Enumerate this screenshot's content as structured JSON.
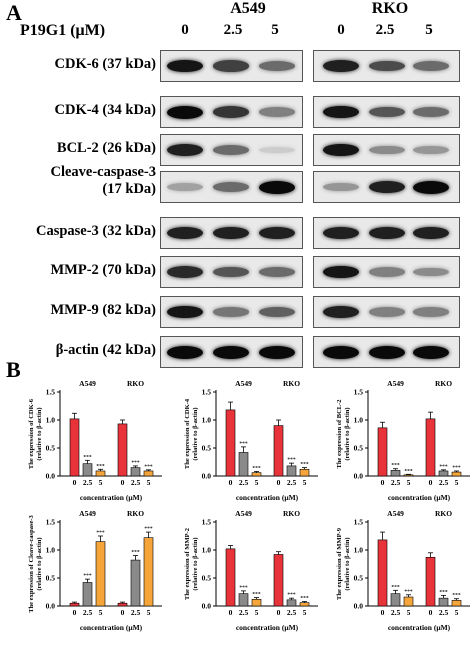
{
  "panel_a": {
    "label": "A",
    "treatment_label": "P19G1 (μM)",
    "cell_lines": [
      "A549",
      "RKO"
    ],
    "concentrations": [
      "0",
      "2.5",
      "5"
    ],
    "rows": [
      {
        "label": "CDK-6 (37 kDa)",
        "a549": [
          0.95,
          0.75,
          0.55
        ],
        "rko": [
          0.9,
          0.7,
          0.55
        ]
      },
      {
        "label": "CDK-4 (34 kDa)",
        "a549": [
          1.0,
          0.8,
          0.45
        ],
        "rko": [
          0.95,
          0.65,
          0.55
        ]
      },
      {
        "label": "BCL-2 (26 kDa)",
        "a549": [
          0.9,
          0.55,
          0.1
        ],
        "rko": [
          0.95,
          0.4,
          0.35
        ]
      },
      {
        "label": "Cleave-caspase-3\n(17 kDa)",
        "a549": [
          0.3,
          0.55,
          1.0
        ],
        "rko": [
          0.35,
          0.9,
          1.0
        ]
      },
      {
        "label": "Caspase-3 (32 kDa)",
        "a549": [
          0.9,
          0.9,
          0.9
        ],
        "rko": [
          0.9,
          0.9,
          0.9
        ]
      },
      {
        "label": "MMP-2 (70 kDa)",
        "a549": [
          0.85,
          0.65,
          0.55
        ],
        "rko": [
          0.95,
          0.45,
          0.4
        ]
      },
      {
        "label": "MMP-9 (82 kDa)",
        "a549": [
          0.95,
          0.5,
          0.6
        ],
        "rko": [
          0.9,
          0.45,
          0.45
        ]
      },
      {
        "label": "β-actin (42 kDa)",
        "a549": [
          1.0,
          1.0,
          1.0
        ],
        "rko": [
          1.0,
          1.0,
          1.0
        ]
      }
    ]
  },
  "panel_b": {
    "label": "B",
    "xlabel": "concentration (μM)",
    "colors": {
      "c0": "#e8333a",
      "c25": "#8a8a8a",
      "c5": "#f5a53a"
    }
  },
  "chart_data": [
    {
      "type": "bar",
      "ylabel": "The expression of CDK-6 (relative to β-actin)",
      "xlabel": "concentration (μM)",
      "ylim": [
        0,
        1.5
      ],
      "yticks": [
        "0.0",
        "0.5",
        "1.0",
        "1.5"
      ],
      "categories": [
        "0",
        "2.5",
        "5"
      ],
      "series": [
        {
          "name": "A549",
          "values": [
            1.02,
            0.22,
            0.09
          ],
          "errors": [
            0.1,
            0.06,
            0.03
          ],
          "sig": [
            "",
            "***",
            "***"
          ]
        },
        {
          "name": "RKO",
          "values": [
            0.93,
            0.15,
            0.09
          ],
          "errors": [
            0.07,
            0.03,
            0.02
          ],
          "sig": [
            "",
            "***",
            "***"
          ]
        }
      ]
    },
    {
      "type": "bar",
      "ylabel": "The expression of CDK-4 (relative to β-actin)",
      "xlabel": "concentration (μM)",
      "ylim": [
        0,
        1.5
      ],
      "yticks": [
        "0.0",
        "0.5",
        "1.0",
        "1.5"
      ],
      "categories": [
        "0",
        "2.5",
        "5"
      ],
      "series": [
        {
          "name": "A549",
          "values": [
            1.18,
            0.42,
            0.06
          ],
          "errors": [
            0.14,
            0.1,
            0.02
          ],
          "sig": [
            "",
            "***",
            "***"
          ]
        },
        {
          "name": "RKO",
          "values": [
            0.9,
            0.18,
            0.12
          ],
          "errors": [
            0.1,
            0.05,
            0.03
          ],
          "sig": [
            "",
            "***",
            "***"
          ]
        }
      ]
    },
    {
      "type": "bar",
      "ylabel": "The expression of BCL-2 (relative to β-actin)",
      "xlabel": "concentration (μM)",
      "ylim": [
        0,
        1.5
      ],
      "yticks": [
        "0.0",
        "0.5",
        "1.0",
        "1.5"
      ],
      "categories": [
        "0",
        "2.5",
        "5"
      ],
      "series": [
        {
          "name": "A549",
          "values": [
            0.86,
            0.1,
            0.02
          ],
          "errors": [
            0.1,
            0.03,
            0.01
          ],
          "sig": [
            "",
            "***",
            "***"
          ]
        },
        {
          "name": "RKO",
          "values": [
            1.02,
            0.09,
            0.07
          ],
          "errors": [
            0.12,
            0.02,
            0.02
          ],
          "sig": [
            "",
            "***",
            "***"
          ]
        }
      ]
    },
    {
      "type": "bar",
      "ylabel": "The expression of Cleave-caspase-3 (relative to β-actin)",
      "xlabel": "concentration (μM)",
      "ylim": [
        0,
        1.5
      ],
      "yticks": [
        "0.0",
        "0.5",
        "1.0",
        "1.5"
      ],
      "categories": [
        "0",
        "2.5",
        "5"
      ],
      "series": [
        {
          "name": "A549",
          "values": [
            0.05,
            0.42,
            1.15
          ],
          "errors": [
            0.02,
            0.06,
            0.1
          ],
          "sig": [
            "",
            "***",
            "***"
          ]
        },
        {
          "name": "RKO",
          "values": [
            0.05,
            0.82,
            1.22
          ],
          "errors": [
            0.02,
            0.08,
            0.1
          ],
          "sig": [
            "",
            "***",
            "***"
          ]
        }
      ]
    },
    {
      "type": "bar",
      "ylabel": "The expression of MMP-2 (relative to β-actin)",
      "xlabel": "concentration (μM)",
      "ylim": [
        0,
        1.5
      ],
      "yticks": [
        "0.0",
        "0.5",
        "1.0",
        "1.5"
      ],
      "categories": [
        "0",
        "2.5",
        "5"
      ],
      "series": [
        {
          "name": "A549",
          "values": [
            1.02,
            0.22,
            0.12
          ],
          "errors": [
            0.06,
            0.05,
            0.03
          ],
          "sig": [
            "",
            "***",
            "***"
          ]
        },
        {
          "name": "RKO",
          "values": [
            0.92,
            0.11,
            0.06
          ],
          "errors": [
            0.05,
            0.03,
            0.02
          ],
          "sig": [
            "",
            "***",
            "***"
          ]
        }
      ]
    },
    {
      "type": "bar",
      "ylabel": "The expression of MMP-9 (relative to β-actin)",
      "xlabel": "concentration (μM)",
      "ylim": [
        0,
        1.5
      ],
      "yticks": [
        "0.0",
        "0.5",
        "1.0",
        "1.5"
      ],
      "categories": [
        "0",
        "2.5",
        "5"
      ],
      "series": [
        {
          "name": "A549",
          "values": [
            1.18,
            0.22,
            0.16
          ],
          "errors": [
            0.14,
            0.06,
            0.04
          ],
          "sig": [
            "",
            "***",
            "***"
          ]
        },
        {
          "name": "RKO",
          "values": [
            0.87,
            0.14,
            0.1
          ],
          "errors": [
            0.08,
            0.05,
            0.03
          ],
          "sig": [
            "",
            "***",
            "***"
          ]
        }
      ]
    }
  ]
}
